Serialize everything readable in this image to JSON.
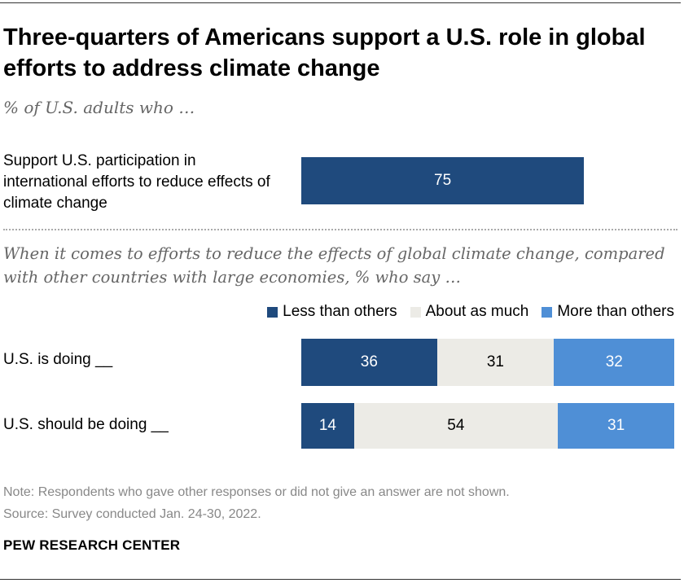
{
  "title": "Three-quarters of Americans support a U.S. role in global efforts to address climate change",
  "subtitle": "% of U.S. adults who …",
  "question": "When it comes to efforts to reduce the effects of global climate change, compared with other countries with large economies, % who say …",
  "note": "Note: Respondents who gave other responses or did not give an answer are not shown.",
  "source": "Source: Survey conducted Jan. 24-30, 2022.",
  "brand": "PEW RESEARCH CENTER",
  "colors": {
    "less": "#1f4a7d",
    "about": "#ecebe6",
    "more": "#4f8fd6"
  },
  "chart_data": [
    {
      "type": "bar",
      "categories": [
        "Support U.S. participation in international efforts to reduce effects of climate change"
      ],
      "values": [
        75
      ],
      "xlim": [
        0,
        100
      ]
    },
    {
      "type": "bar",
      "stacked": true,
      "orientation": "horizontal",
      "categories": [
        "U.S. is doing __",
        "U.S. should be doing __"
      ],
      "series": [
        {
          "name": "Less than others",
          "values": [
            36,
            14
          ]
        },
        {
          "name": "About as much",
          "values": [
            31,
            54
          ]
        },
        {
          "name": "More than others",
          "values": [
            32,
            31
          ]
        }
      ],
      "legend": "top-right"
    }
  ]
}
